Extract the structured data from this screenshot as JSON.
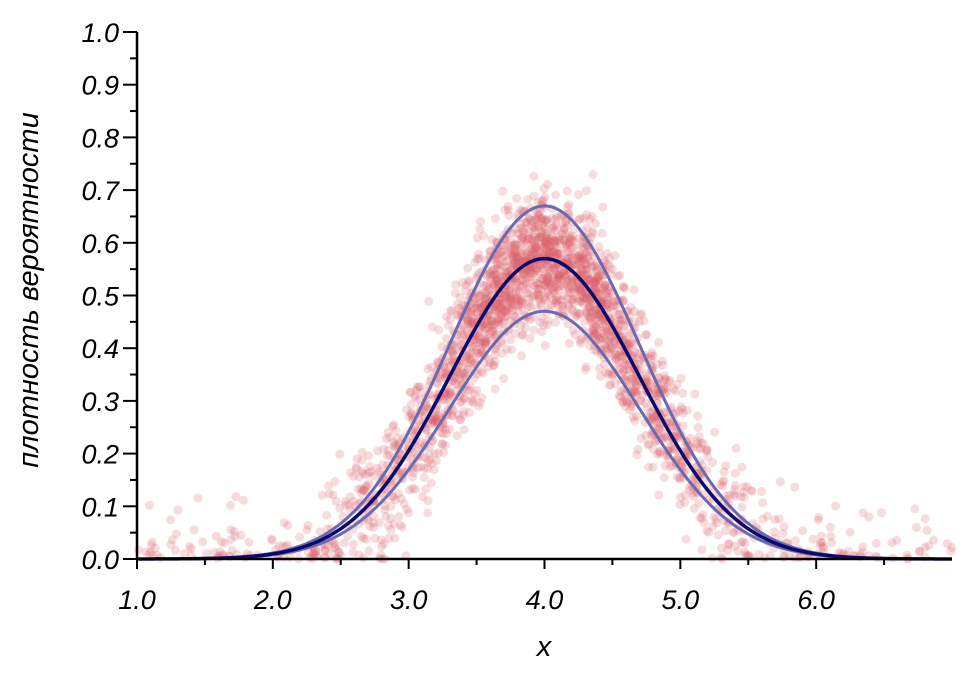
{
  "chart_data": {
    "type": "scatter",
    "title": "",
    "xlabel": "x",
    "ylabel": "плотность вероятности",
    "xlim": [
      1.0,
      7.0
    ],
    "ylim": [
      0.0,
      1.0
    ],
    "x_ticks": [
      "1.0",
      "2.0",
      "3.0",
      "4.0",
      "5.0",
      "6.0"
    ],
    "y_ticks": [
      "0.0",
      "0.1",
      "0.2",
      "0.3",
      "0.4",
      "0.5",
      "0.6",
      "0.7",
      "0.8",
      "0.9",
      "1.0"
    ],
    "grid": false,
    "legend": "none",
    "curves": {
      "distribution": "normal",
      "mean": 4.0,
      "sd": 0.7,
      "peak_density": 0.57,
      "band_offset": 0.1,
      "x_range": [
        1.0,
        7.0
      ]
    },
    "scatter": {
      "description_values": {
        "n_points": 2500,
        "x_range": [
          1.0,
          7.0
        ],
        "jitter_sd": 0.06
      }
    },
    "colors": {
      "center_curve": "#0a0a6e",
      "band_curves": "#6a6ab0",
      "points": "#d9606a",
      "axis": "#000000"
    }
  }
}
